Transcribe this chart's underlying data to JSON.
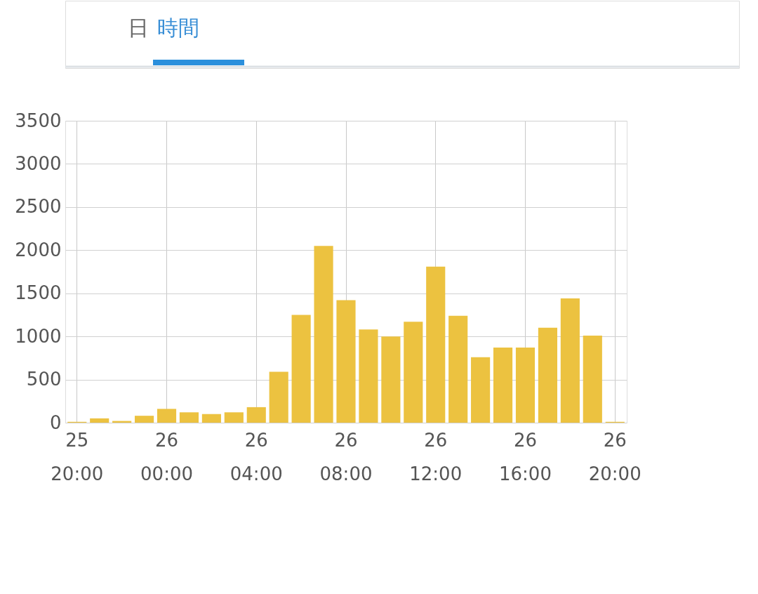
{
  "chart_data": {
    "type": "bar",
    "annotations": [
      "日",
      "時間"
    ],
    "categories": [
      "25\n20:00",
      null,
      null,
      null,
      "26\n00:00",
      null,
      null,
      null,
      "26\n04:00",
      null,
      null,
      null,
      "26\n08:00",
      null,
      null,
      null,
      "26\n12:00",
      null,
      null,
      null,
      "26\n16:00",
      null,
      null,
      null,
      "26\n20:00"
    ],
    "values": [
      10,
      50,
      20,
      80,
      160,
      120,
      100,
      120,
      180,
      590,
      1250,
      2050,
      1420,
      1080,
      1000,
      1170,
      1810,
      1240,
      760,
      870,
      870,
      1100,
      1440,
      1010,
      10
    ],
    "color": "#ecc240",
    "ylim": [
      0,
      3500
    ],
    "yticks": [
      0,
      500,
      1000,
      1500,
      2000,
      2500,
      3000,
      3500
    ],
    "grid": true
  }
}
